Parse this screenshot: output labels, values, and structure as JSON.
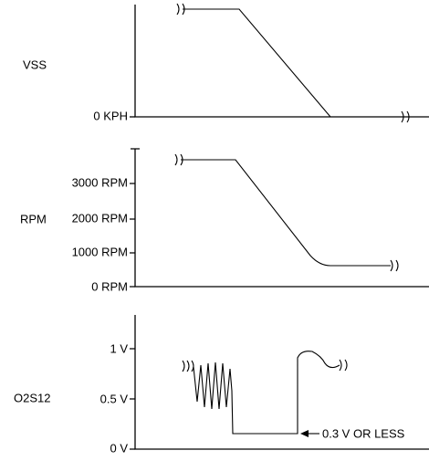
{
  "panels": [
    {
      "label": "VSS",
      "ticks": [
        "0 KPH"
      ]
    },
    {
      "label": "RPM",
      "ticks": [
        "3000 RPM",
        "2000 RPM",
        "1000 RPM",
        "0 RPM"
      ]
    },
    {
      "label": "O2S12",
      "ticks": [
        "1 V",
        "0.5 V",
        "0 V"
      ],
      "annotation": "0.3 V OR LESS"
    }
  ]
}
